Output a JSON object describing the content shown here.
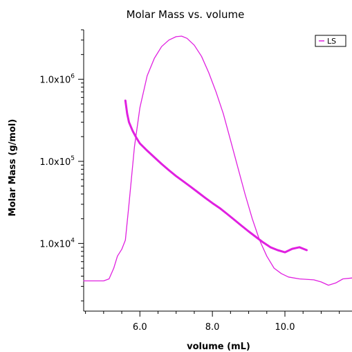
{
  "chart_data": {
    "type": "line",
    "title": "Molar Mass vs. volume",
    "xlabel": "volume (mL)",
    "ylabel": "Molar Mass (g/mol)",
    "xlim": [
      4.45,
      11.85
    ],
    "y_scale": "log",
    "ylim": [
      1500,
      4000000
    ],
    "grid": false,
    "legend": {
      "position": "top-right",
      "entries": [
        "LS"
      ]
    },
    "x_ticks": [
      {
        "value": 6,
        "label": "6.0"
      },
      {
        "value": 8,
        "label": "8.0"
      },
      {
        "value": 10,
        "label": "10.0"
      }
    ],
    "y_ticks": [
      {
        "value": 10000,
        "base": "1.0x10",
        "exp": "4"
      },
      {
        "value": 100000,
        "base": "1.0x10",
        "exp": "5"
      },
      {
        "value": 1000000,
        "base": "1.0x10",
        "exp": "6"
      }
    ],
    "colors": {
      "series": "#e020e0",
      "axis": "#000000"
    },
    "series": [
      {
        "name": "LS",
        "kind": "signal",
        "points": [
          [
            4.45,
            3500
          ],
          [
            5.0,
            3500
          ],
          [
            5.15,
            3700
          ],
          [
            5.28,
            5000
          ],
          [
            5.38,
            7000
          ],
          [
            5.5,
            8500
          ],
          [
            5.6,
            11000
          ],
          [
            5.7,
            30000
          ],
          [
            5.85,
            150000
          ],
          [
            6.0,
            450000
          ],
          [
            6.2,
            1100000
          ],
          [
            6.4,
            1800000
          ],
          [
            6.6,
            2500000
          ],
          [
            6.8,
            3000000
          ],
          [
            7.0,
            3300000
          ],
          [
            7.15,
            3350000
          ],
          [
            7.3,
            3150000
          ],
          [
            7.5,
            2600000
          ],
          [
            7.7,
            1900000
          ],
          [
            7.9,
            1200000
          ],
          [
            8.1,
            700000
          ],
          [
            8.3,
            380000
          ],
          [
            8.5,
            180000
          ],
          [
            8.7,
            85000
          ],
          [
            8.9,
            40000
          ],
          [
            9.1,
            20000
          ],
          [
            9.3,
            11000
          ],
          [
            9.5,
            7000
          ],
          [
            9.7,
            5000
          ],
          [
            9.9,
            4300
          ],
          [
            10.1,
            3900
          ],
          [
            10.4,
            3700
          ],
          [
            10.8,
            3600
          ],
          [
            11.0,
            3400
          ],
          [
            11.2,
            3100
          ],
          [
            11.4,
            3300
          ],
          [
            11.6,
            3700
          ],
          [
            11.85,
            3800
          ]
        ]
      },
      {
        "name": "Molar Mass",
        "kind": "molar_mass",
        "points": [
          [
            5.6,
            550000
          ],
          [
            5.65,
            380000
          ],
          [
            5.7,
            300000
          ],
          [
            5.8,
            235000
          ],
          [
            5.9,
            195000
          ],
          [
            6.0,
            165000
          ],
          [
            6.2,
            135000
          ],
          [
            6.4,
            112000
          ],
          [
            6.6,
            93000
          ],
          [
            6.8,
            78000
          ],
          [
            7.0,
            66000
          ],
          [
            7.2,
            57000
          ],
          [
            7.4,
            49000
          ],
          [
            7.6,
            42000
          ],
          [
            7.8,
            36000
          ],
          [
            8.0,
            31000
          ],
          [
            8.2,
            27000
          ],
          [
            8.4,
            23000
          ],
          [
            8.6,
            19500
          ],
          [
            8.8,
            16500
          ],
          [
            9.0,
            14000
          ],
          [
            9.2,
            12000
          ],
          [
            9.4,
            10300
          ],
          [
            9.6,
            9000
          ],
          [
            9.8,
            8300
          ],
          [
            10.0,
            7800
          ],
          [
            10.2,
            8600
          ],
          [
            10.4,
            9000
          ],
          [
            10.6,
            8300
          ]
        ]
      }
    ]
  }
}
